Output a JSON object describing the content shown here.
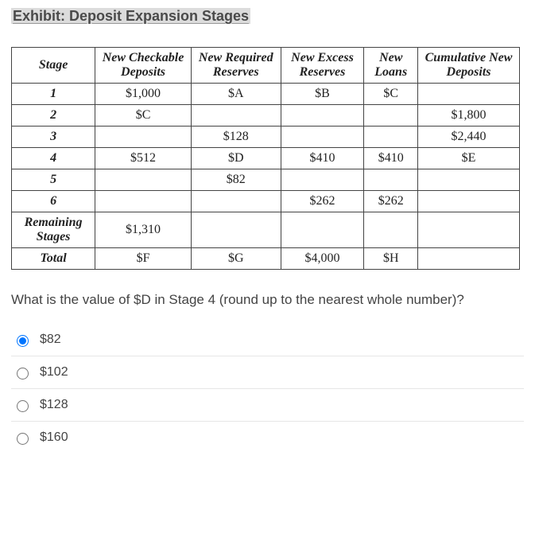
{
  "title": "Exhibit: Deposit Expansion Stages",
  "table": {
    "columns": [
      "Stage",
      "New Checkable Deposits",
      "New Required Reserves",
      "New Excess Reserves",
      "New Loans",
      "Cumulative New Deposits"
    ],
    "rows": [
      {
        "head": "1",
        "c1": "$1,000",
        "c2": "$A",
        "c3": "$B",
        "c4": "$C",
        "c5": ""
      },
      {
        "head": "2",
        "c1": "$C",
        "c2": "",
        "c3": "",
        "c4": "",
        "c5": "$1,800"
      },
      {
        "head": "3",
        "c1": "",
        "c2": "$128",
        "c3": "",
        "c4": "",
        "c5": "$2,440"
      },
      {
        "head": "4",
        "c1": "$512",
        "c2": "$D",
        "c3": "$410",
        "c4": "$410",
        "c5": "$E"
      },
      {
        "head": "5",
        "c1": "",
        "c2": "$82",
        "c3": "",
        "c4": "",
        "c5": ""
      },
      {
        "head": "6",
        "c1": "",
        "c2": "",
        "c3": "$262",
        "c4": "$262",
        "c5": ""
      },
      {
        "head": "Remaining Stages",
        "c1": "$1,310",
        "c2": "",
        "c3": "",
        "c4": "",
        "c5": ""
      },
      {
        "head": "Total",
        "c1": "$F",
        "c2": "$G",
        "c3": "$4,000",
        "c4": "$H",
        "c5": ""
      }
    ]
  },
  "question": "What is the value of $D in Stage 4 (round up to the nearest whole number)?",
  "options": [
    {
      "label": "$82",
      "selected": true
    },
    {
      "label": "$102",
      "selected": false
    },
    {
      "label": "$128",
      "selected": false
    },
    {
      "label": "$160",
      "selected": false
    }
  ],
  "colors": {
    "title_bg": "#dcdcdc",
    "border": "#444444",
    "text": "#333333",
    "divider": "#e6e6e6"
  }
}
